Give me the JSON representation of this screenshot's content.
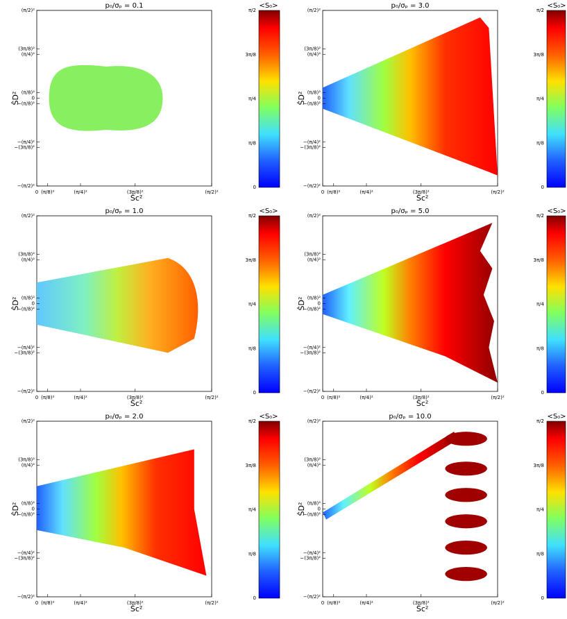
{
  "panels": [
    {
      "title": "p₀/σₚ = 0.1",
      "x_label": "Ŝc²",
      "y_label": "ŜD²",
      "colorbar_title": "<S₀>"
    },
    {
      "title": "p₀/σₚ = 3.0",
      "x_label": "Ŝc²",
      "y_label": "ŜD²",
      "colorbar_title": "<S₀>"
    },
    {
      "title": "p₀/σₚ = 1.0",
      "x_label": "Ŝc²",
      "y_label": "ŜD²",
      "colorbar_title": "<S₀>"
    },
    {
      "title": "p₀/σₚ = 5.0",
      "x_label": "Ŝc²",
      "y_label": "ŜD²",
      "colorbar_title": "<S₀>"
    },
    {
      "title": "p₀/σₚ = 2.0",
      "x_label": "Ŝc²",
      "y_label": "ŜD²",
      "colorbar_title": "<S₀>"
    },
    {
      "title": "p₀/σₚ = 10.0",
      "x_label": "Ŝc²",
      "y_label": "ŜD²",
      "colorbar_title": "<S₀>"
    }
  ],
  "x_ticks": [
    "0",
    "(π/8)²",
    "(π/4)²",
    "(3π/8)²",
    "(π/2)²"
  ],
  "y_ticks": [
    "(π/2)²",
    "(3π/8)²",
    "(π/4)²",
    "(π/8)²",
    "0",
    "−(π/8)²",
    "−(π/4)²",
    "−(3π/8)²",
    "−(π/2)²"
  ],
  "colorbar_ticks": [
    "π/2",
    "3π/8",
    "π/4",
    "π/8",
    "0"
  ]
}
